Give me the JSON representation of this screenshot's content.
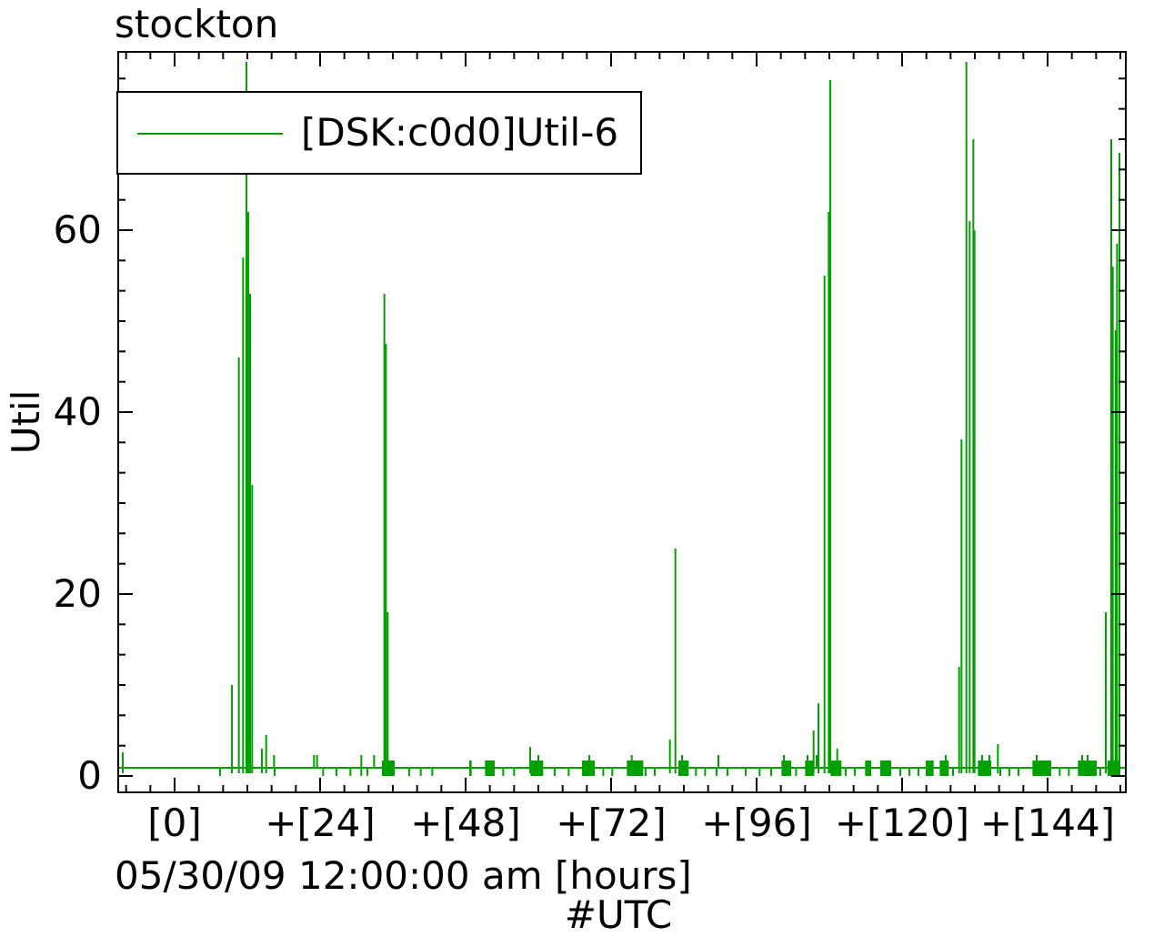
{
  "title": "stockton",
  "legend": {
    "series_label": "[DSK:c0d0]Util-6"
  },
  "colors": {
    "series": "#00a000",
    "axis": "#000000",
    "background": "#ffffff"
  },
  "y_axis": {
    "label": "Util",
    "tick_values": [
      0,
      20,
      40,
      60
    ],
    "tick_labels": [
      "0",
      "20",
      "40",
      "60"
    ],
    "minor_tick_step": 3.3333,
    "range": [
      -1.8,
      79.6
    ]
  },
  "x_axis": {
    "tick_hours": [
      0,
      24,
      48,
      72,
      96,
      120,
      144
    ],
    "tick_labels": [
      "[0]",
      "+[24]",
      "+[48]",
      "+[72]",
      "+[96]",
      "+[120]",
      "+[144]"
    ],
    "minor_tick_step_hours": 4,
    "range_hours": [
      -9.3,
      157
    ],
    "date_label": "05/30/09 12:00:00 am [hours]",
    "footer_label": "#UTC"
  },
  "chart_data": {
    "type": "line",
    "title": "stockton",
    "xlabel": "#UTC",
    "ylabel": "Util",
    "x_range_hours": [
      -9.3,
      157
    ],
    "ylim": [
      -1.8,
      79.6
    ],
    "legend_position": "top-left",
    "grid": false,
    "series": [
      {
        "name": "[DSK:c0d0]Util-6",
        "color": "#00a000",
        "baseline_value": 0.9,
        "spikes": [
          [
            -8.55,
            2.6
          ],
          [
            9.45,
            10
          ],
          [
            10.6,
            46
          ],
          [
            11.3,
            57
          ],
          [
            11.85,
            78.5
          ],
          [
            12.15,
            62
          ],
          [
            12.45,
            53
          ],
          [
            12.8,
            32
          ],
          [
            14.4,
            3
          ],
          [
            15.1,
            4.5
          ],
          [
            34.6,
            53
          ],
          [
            34.85,
            47.5
          ],
          [
            35.15,
            18
          ],
          [
            58.65,
            3.2
          ],
          [
            81.7,
            4
          ],
          [
            82.6,
            25
          ],
          [
            105.4,
            5
          ],
          [
            106.2,
            8
          ],
          [
            107.2,
            55
          ],
          [
            107.9,
            62
          ],
          [
            108.15,
            76.5
          ],
          [
            109.3,
            3
          ],
          [
            129.4,
            12
          ],
          [
            129.8,
            37
          ],
          [
            130.6,
            78.5
          ],
          [
            131.15,
            61
          ],
          [
            131.75,
            70
          ],
          [
            131.95,
            60
          ],
          [
            135.8,
            3.5
          ],
          [
            153.6,
            18
          ],
          [
            154.5,
            70
          ],
          [
            154.75,
            56
          ],
          [
            155.2,
            49
          ],
          [
            155.45,
            58.5
          ],
          [
            155.85,
            68.5
          ]
        ],
        "bumps_value": 2.3,
        "bumps_hours": [
          16.4,
          23.0,
          23.5,
          30.8,
          32.9,
          60.0,
          68.4,
          75.4,
          83.7,
          89.7,
          100.5,
          104.4,
          105.9,
          127.2,
          133.2,
          134.4,
          142.2,
          149.7,
          150.6
        ],
        "dips_to_zero_hours": [
          7.5,
          16.5,
          24.5,
          26.7,
          29.0,
          30.8,
          31.8,
          38.7,
          40.6,
          42.5,
          54.2,
          56.0,
          62.7,
          65.0,
          70.7,
          72.2,
          77.7,
          79.2,
          86.0,
          87.5,
          89.4,
          91.2,
          94.2,
          96.5,
          98.4,
          102.5,
          110.7,
          112.2,
          119.7,
          121.2,
          122.7,
          128.4,
          136.2,
          137.7,
          139.2,
          146.0,
          147.5,
          152.7
        ],
        "activity_blocks_hours": [
          [
            34.2,
            36.3
          ],
          [
            48.6,
            49.0
          ],
          [
            51.2,
            52.8
          ],
          [
            58.7,
            60.8
          ],
          [
            67.2,
            69.3
          ],
          [
            74.6,
            77.3
          ],
          [
            83.1,
            84.8
          ],
          [
            100.1,
            101.7
          ],
          [
            104.0,
            105.5
          ],
          [
            108.2,
            110.0
          ],
          [
            113.9,
            114.9
          ],
          [
            116.4,
            118.2
          ],
          [
            123.9,
            125.2
          ],
          [
            126.2,
            127.7
          ],
          [
            132.5,
            134.7
          ],
          [
            141.5,
            144.6
          ],
          [
            149.0,
            152.1
          ],
          [
            153.9,
            156.0
          ]
        ]
      }
    ]
  }
}
